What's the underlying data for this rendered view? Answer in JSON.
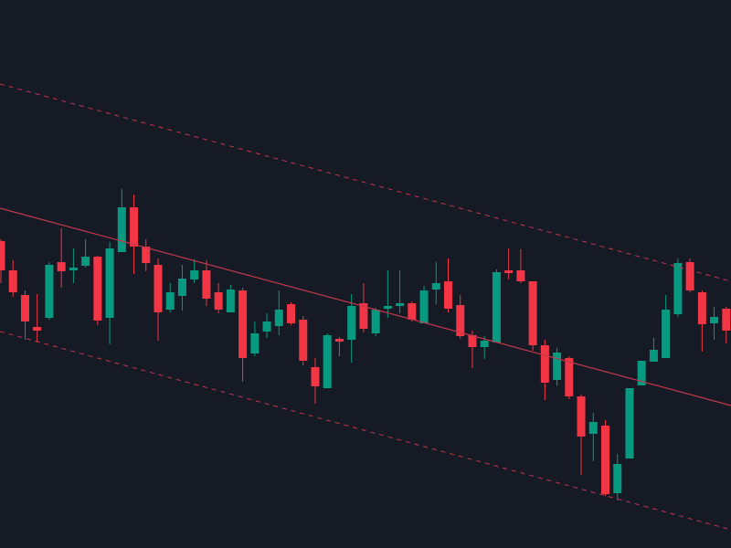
{
  "chart_data": {
    "type": "candlestick",
    "open": [
      336,
      304,
      277,
      242,
      252,
      313,
      304,
      309,
      319,
      252,
      324,
      373,
      330,
      310,
      261,
      276,
      294,
      304,
      280,
      258,
      282,
      213,
      237,
      243,
      267,
      250,
      198,
      175,
      229,
      228,
      268,
      235,
      262,
      265,
      268,
      246,
      283,
      292,
      266,
      233,
      220,
      225,
      304,
      304,
      292,
      222,
      184,
      208,
      166,
      125,
      134,
      60,
      98,
      178,
      204,
      208,
      256,
      313,
      280,
      246,
      262
    ],
    "high": [
      338,
      315,
      282,
      278,
      313,
      350,
      328,
      338,
      320,
      335,
      393,
      387,
      338,
      317,
      290,
      310,
      316,
      315,
      290,
      288,
      285,
      248,
      257,
      282,
      269,
      254,
      208,
      235,
      231,
      278,
      290,
      263,
      304,
      304,
      270,
      287,
      313,
      317,
      277,
      238,
      232,
      305,
      328,
      327,
      292,
      228,
      219,
      210,
      168,
      148,
      140,
      103,
      175,
      205,
      230,
      277,
      317,
      317,
      282,
      264,
      264
    ],
    "low": [
      290,
      275,
      228,
      225,
      250,
      285,
      290,
      307,
      244,
      223,
      324,
      300,
      303,
      227,
      258,
      260,
      290,
      265,
      257,
      258,
      182,
      210,
      230,
      233,
      244,
      200,
      158,
      175,
      210,
      203,
      236,
      232,
      252,
      257,
      248,
      246,
      267,
      258,
      229,
      197,
      207,
      225,
      294,
      290,
      216,
      162,
      178,
      163,
      80,
      95,
      57,
      52,
      98,
      178,
      204,
      208,
      253,
      280,
      215,
      228,
      224
    ],
    "close": [
      304,
      280,
      248,
      238,
      310,
      303,
      307,
      319,
      249,
      328,
      373,
      330,
      312,
      258,
      280,
      295,
      304,
      273,
      261,
      283,
      208,
      235,
      248,
      261,
      246,
      205,
      177,
      233,
      226,
      265,
      240,
      261,
      265,
      268,
      250,
      282,
      290,
      262,
      232,
      220,
      227,
      302,
      301,
      292,
      222,
      181,
      214,
      166,
      122,
      138,
      59,
      92,
      175,
      205,
      217,
      261,
      312,
      282,
      245,
      253,
      238
    ],
    "up_color": "#089981",
    "down_color": "#f23645",
    "ylim": [
      0,
      600
    ]
  }
}
